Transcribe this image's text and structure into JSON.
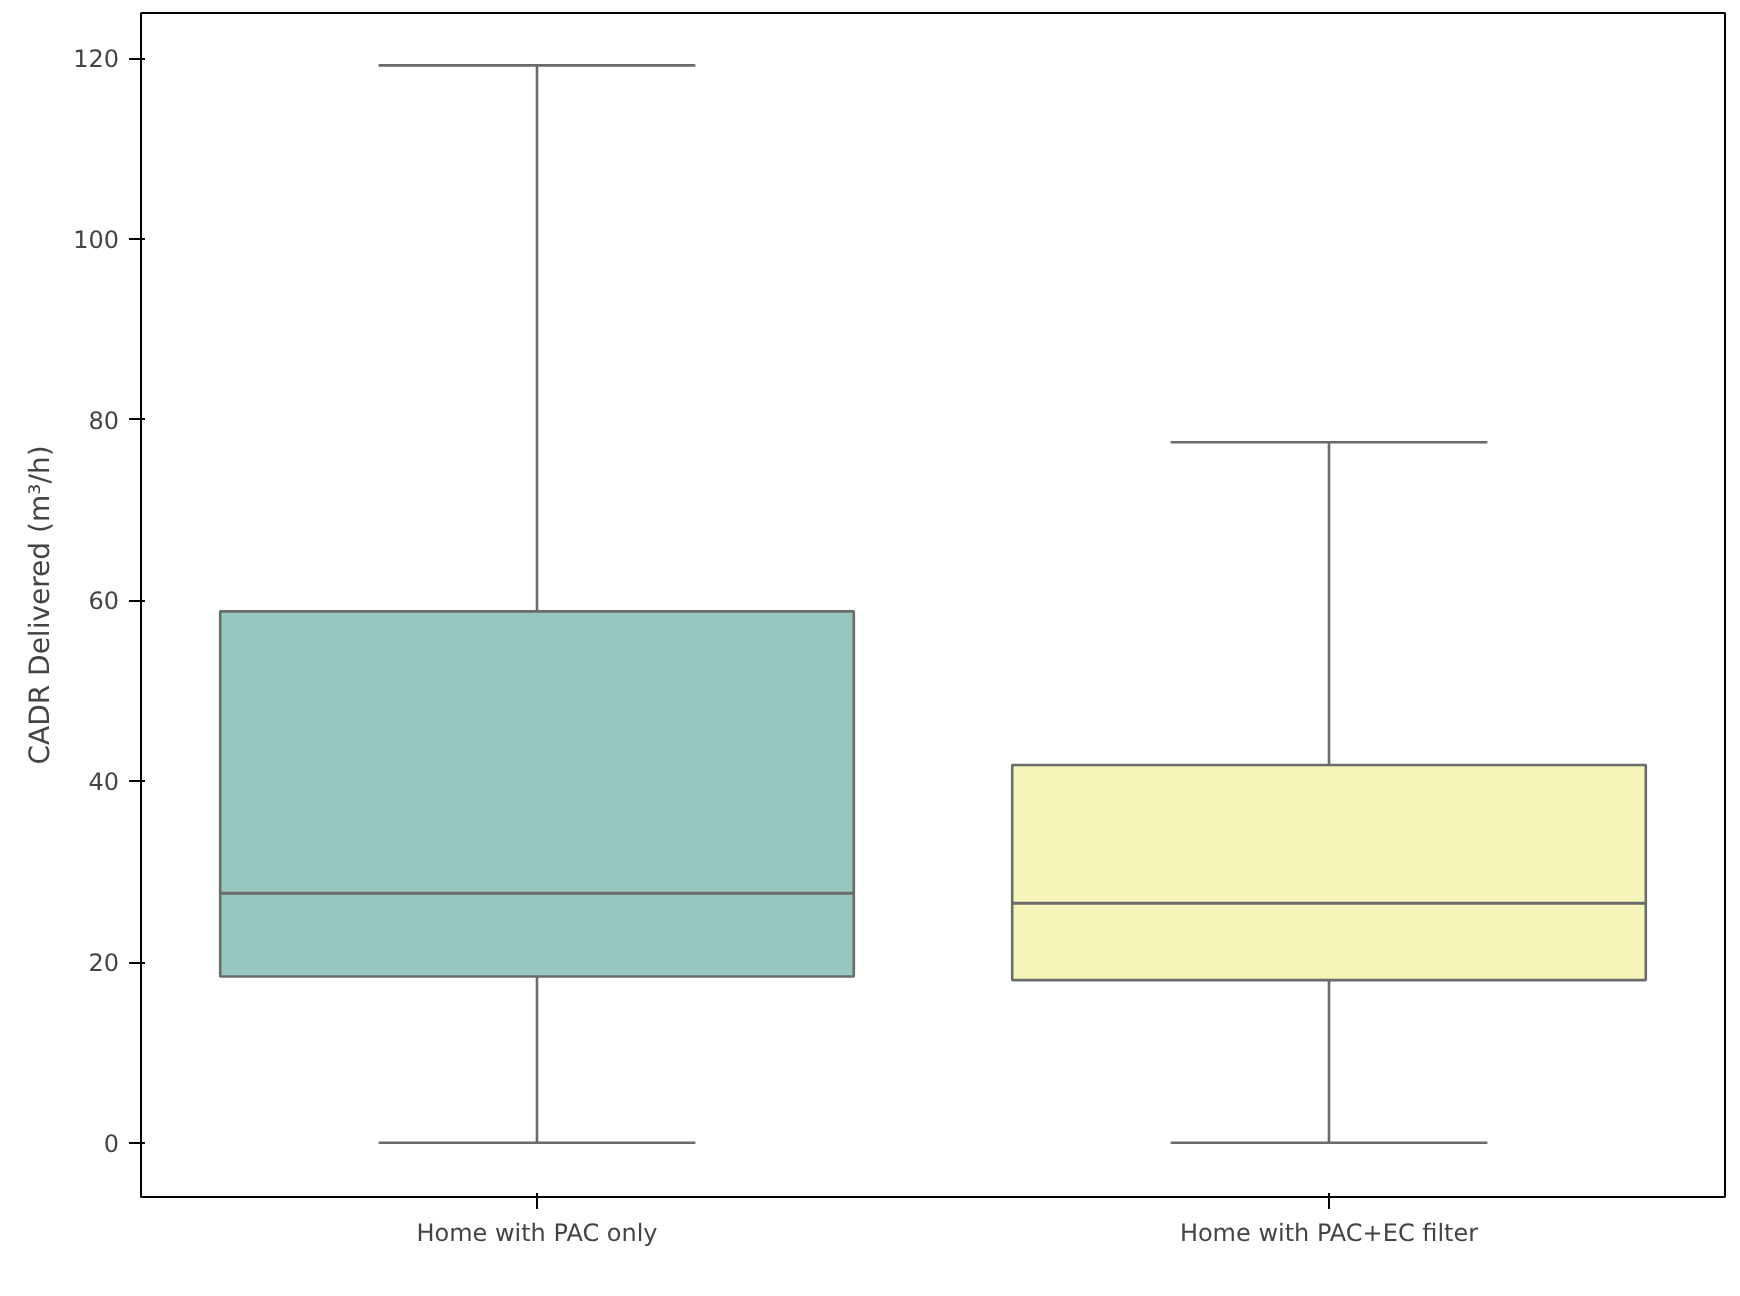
{
  "chart_data": {
    "type": "box",
    "ylabel": "CADR Delivered (m³/h)",
    "categories": [
      "Home with PAC only",
      "Home with PAC+EC filter"
    ],
    "boxes": [
      {
        "low": 0,
        "q1": 18.4,
        "median": 27.6,
        "q3": 58.8,
        "high": 119.2
      },
      {
        "low": 0,
        "q1": 18.0,
        "median": 26.5,
        "q3": 41.8,
        "high": 77.5
      }
    ],
    "colors": [
      "#96c8c0",
      "#f5f5b9"
    ],
    "ylim": [
      -6,
      125
    ],
    "yticks": [
      0,
      20,
      40,
      60,
      80,
      100,
      120
    ],
    "grid": false
  }
}
